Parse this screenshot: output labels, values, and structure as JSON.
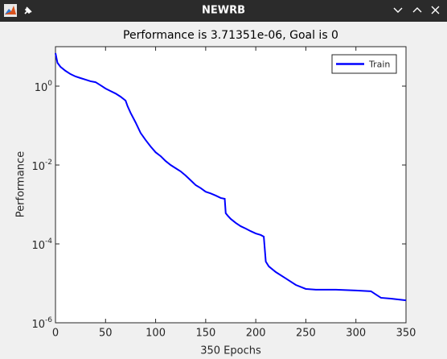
{
  "window": {
    "title": "NEWRB"
  },
  "chart_data": {
    "type": "line",
    "title": "Performance is 3.71351e-06, Goal is 0",
    "xlabel": "350 Epochs",
    "ylabel": "Performance",
    "x": [
      0,
      2,
      5,
      10,
      15,
      20,
      25,
      30,
      35,
      40,
      45,
      50,
      55,
      60,
      65,
      70,
      72,
      75,
      80,
      85,
      90,
      95,
      100,
      105,
      110,
      115,
      120,
      125,
      130,
      135,
      140,
      145,
      150,
      155,
      160,
      165,
      169,
      170,
      172,
      175,
      180,
      185,
      190,
      195,
      200,
      205,
      208,
      210,
      213,
      220,
      230,
      240,
      250,
      260,
      280,
      300,
      315,
      320,
      325,
      335,
      350
    ],
    "series": [
      {
        "name": "Train",
        "color": "#0000ff",
        "values": [
          6.87,
          3.9,
          3.09,
          2.44,
          2.02,
          1.76,
          1.6,
          1.46,
          1.33,
          1.26,
          1.05,
          0.87,
          0.75,
          0.65,
          0.54,
          0.43,
          0.31,
          0.21,
          0.12,
          0.065,
          0.043,
          0.0295,
          0.021,
          0.0168,
          0.0126,
          0.01,
          0.0083,
          0.0069,
          0.0054,
          0.0041,
          0.0031,
          0.0026,
          0.0021,
          0.0019,
          0.00168,
          0.00146,
          0.00139,
          0.0006,
          0.00052,
          0.00043,
          0.00034,
          0.00028,
          0.000244,
          0.00021,
          0.000184,
          0.000168,
          0.000153,
          3.56e-05,
          2.69e-05,
          1.93e-05,
          1.33e-05,
          9.1e-06,
          7.2e-06,
          6.9e-06,
          6.9e-06,
          6.6e-06,
          6.3e-06,
          5.2e-06,
          4.3e-06,
          4.1e-06,
          3.71351e-06
        ]
      }
    ],
    "xlim": [
      0,
      350
    ],
    "xticks": [
      0,
      50,
      100,
      150,
      200,
      250,
      300,
      350
    ],
    "ylim": [
      1e-06,
      10
    ],
    "yticks": [
      {
        "value": 1e-06,
        "label": "10^-6"
      },
      {
        "value": 0.0001,
        "label": "10^-4"
      },
      {
        "value": 0.01,
        "label": "10^-2"
      },
      {
        "value": 1,
        "label": "10^0"
      }
    ],
    "yscale": "log",
    "legend": "upper right"
  }
}
